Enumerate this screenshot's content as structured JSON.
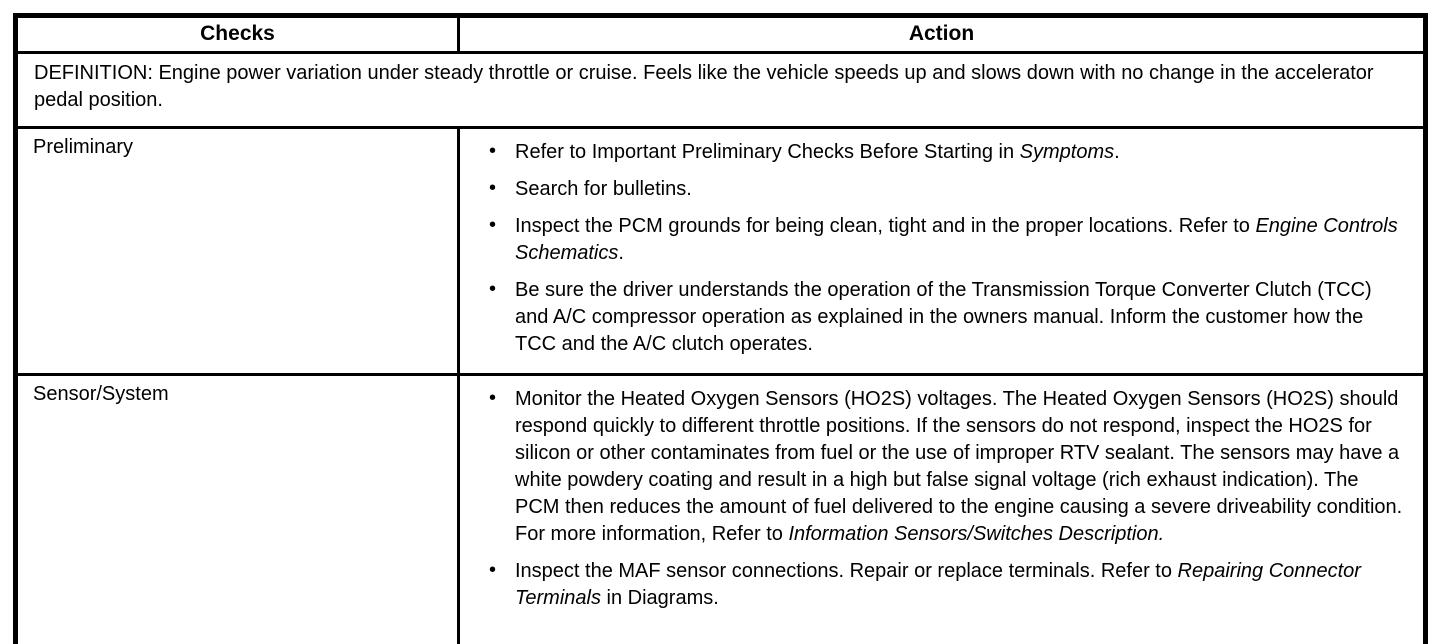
{
  "page": {
    "background_color": "#ffffff",
    "text_color": "#000000"
  },
  "table": {
    "bullet_glyph": "•",
    "columns": [
      {
        "label": "Checks"
      },
      {
        "label": "Action"
      }
    ],
    "definition": "DEFINITION: Engine power variation under steady throttle or cruise. Feels like the vehicle speeds up and slows down with no change in the accelerator pedal position.",
    "rows": [
      {
        "check": "Preliminary",
        "actions": [
          [
            {
              "t": "Refer to Important Preliminary Checks Before Starting in "
            },
            {
              "t": "Symptoms",
              "i": true
            },
            {
              "t": "."
            }
          ],
          [
            {
              "t": "Search for bulletins."
            }
          ],
          [
            {
              "t": "Inspect the PCM grounds for being clean, tight and in the proper locations. Refer to "
            },
            {
              "t": "Engine Controls Schematics",
              "i": true
            },
            {
              "t": "."
            }
          ],
          [
            {
              "t": "Be sure the driver understands the operation of the Transmission Torque Converter Clutch (TCC) and A/C compressor operation as explained in the owners manual. Inform the customer how the TCC and the A/C clutch operates."
            }
          ]
        ]
      },
      {
        "check": "Sensor/System",
        "actions": [
          [
            {
              "t": "Monitor the Heated Oxygen Sensors (HO2S) voltages. The Heated Oxygen Sensors (HO2S) should respond quickly to different throttle positions. If the sensors do not respond, inspect the HO2S for silicon or other contaminates from fuel or the use of improper RTV sealant. The sensors may have a white powdery coating and result in a high but false signal voltage (rich exhaust indication). The PCM then reduces the amount of fuel delivered to the engine causing a severe driveability condition. For more information, Refer to "
            },
            {
              "t": "Information Sensors/Switches Description.",
              "i": true
            }
          ],
          [
            {
              "t": "Inspect the MAF sensor connections. Repair or replace terminals. Refer to "
            },
            {
              "t": "Repairing Connector Terminals",
              "i": true
            },
            {
              "t": " in Diagrams."
            }
          ]
        ]
      }
    ]
  }
}
